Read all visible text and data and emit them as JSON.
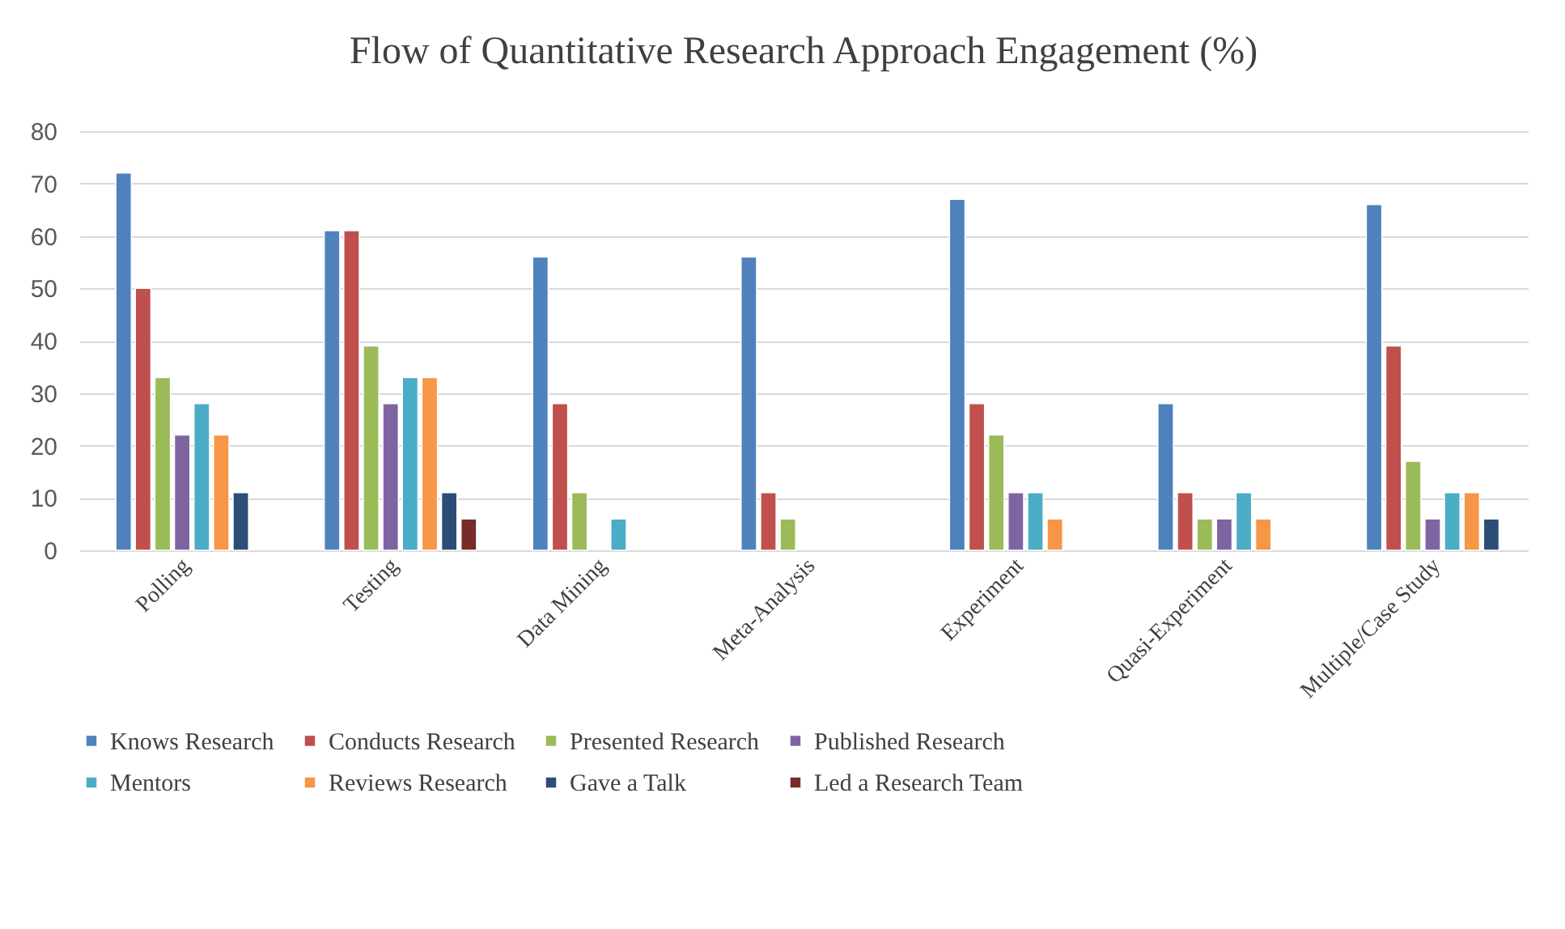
{
  "chart_data": {
    "type": "bar",
    "title": "Flow of Quantitative Research Approach Engagement (%)",
    "categories": [
      "Polling",
      "Testing",
      "Data Mining",
      "Meta-Analysis",
      "Experiment",
      "Quasi-Experiment",
      "Multiple/Case Study"
    ],
    "series": [
      {
        "name": "Knows Research",
        "color": "#4f81bd",
        "values": [
          72,
          61,
          56,
          56,
          67,
          28,
          66
        ]
      },
      {
        "name": "Conducts Research",
        "color": "#c0504d",
        "values": [
          50,
          61,
          28,
          11,
          28,
          11,
          39
        ]
      },
      {
        "name": "Presented Research",
        "color": "#9bbb59",
        "values": [
          33,
          39,
          11,
          6,
          22,
          6,
          17
        ]
      },
      {
        "name": "Published Research",
        "color": "#8064a2",
        "values": [
          22,
          28,
          null,
          null,
          11,
          6,
          6
        ]
      },
      {
        "name": "Mentors",
        "color": "#4bacc6",
        "values": [
          28,
          33,
          6,
          null,
          11,
          11,
          11
        ]
      },
      {
        "name": "Reviews Research",
        "color": "#f79646",
        "values": [
          22,
          33,
          null,
          null,
          6,
          6,
          11
        ]
      },
      {
        "name": "Gave a Talk",
        "color": "#2c4d75",
        "values": [
          11,
          11,
          null,
          null,
          null,
          null,
          6
        ]
      },
      {
        "name": "Led a Research Team",
        "color": "#772c2a",
        "values": [
          null,
          6,
          null,
          null,
          null,
          null,
          null
        ]
      }
    ],
    "ylim": [
      0,
      80
    ],
    "yticks": [
      0,
      10,
      20,
      30,
      40,
      50,
      60,
      70,
      80
    ],
    "grid": "y",
    "legend": "bottom"
  }
}
